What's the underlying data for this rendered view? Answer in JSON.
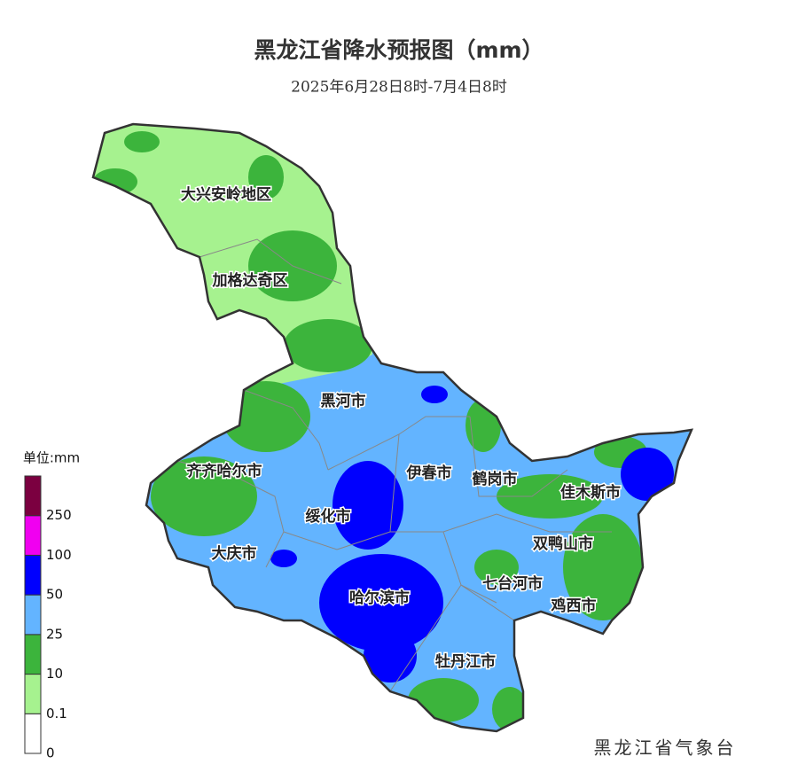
{
  "title": "黑龙江省降水预报图（mm）",
  "subtitle": "2025年6月28日8时-7月4日8时",
  "regions": [
    "大兴安岭地区",
    "加格达奇区",
    "黑河市",
    "齐齐哈尔市",
    "伊春市",
    "鹤岗市",
    "佳木斯市",
    "绥化市",
    "大庆市",
    "双鸭山市",
    "七台河市",
    "哈尔滨市",
    "鸡西市",
    "牡丹江市"
  ],
  "legend": {
    "title": "单位:mm",
    "ticks": [
      0,
      0.1,
      10,
      25,
      50,
      100,
      250
    ],
    "colors": [
      "#ffffff",
      "#a6f28f",
      "#3cb43c",
      "#63b4ff",
      "#0000fe",
      "#f000f0",
      "#7b0040"
    ]
  },
  "credit": "黑龙江省气象台"
}
